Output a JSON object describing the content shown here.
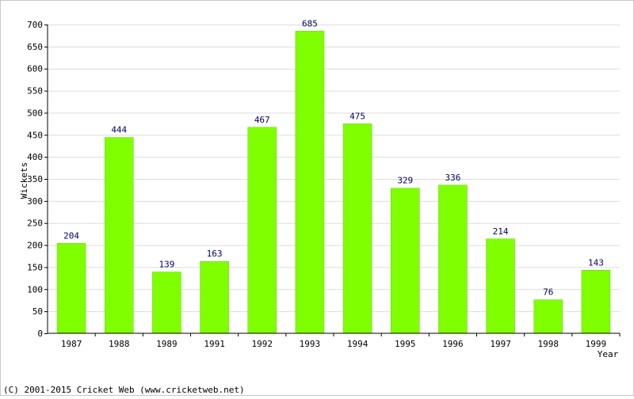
{
  "chart_data": {
    "type": "bar",
    "xlabel": "Year",
    "ylabel": "Wickets",
    "ylim": [
      0,
      700
    ],
    "ytick_step": 50,
    "grid": true,
    "categories": [
      "1987",
      "1988",
      "1989",
      "1991",
      "1992",
      "1993",
      "1994",
      "1995",
      "1996",
      "1997",
      "1998",
      "1999"
    ],
    "values": [
      204,
      444,
      139,
      163,
      467,
      685,
      475,
      329,
      336,
      214,
      76,
      143
    ],
    "colors": {
      "bar": "#80ff00",
      "bar_edge": "#66cc00",
      "data_label": "#000066",
      "grid": "#dcdcdc",
      "axis": "#000000"
    }
  },
  "footer": {
    "copyright": "(C) 2001-2015 Cricket Web (www.cricketweb.net)"
  }
}
